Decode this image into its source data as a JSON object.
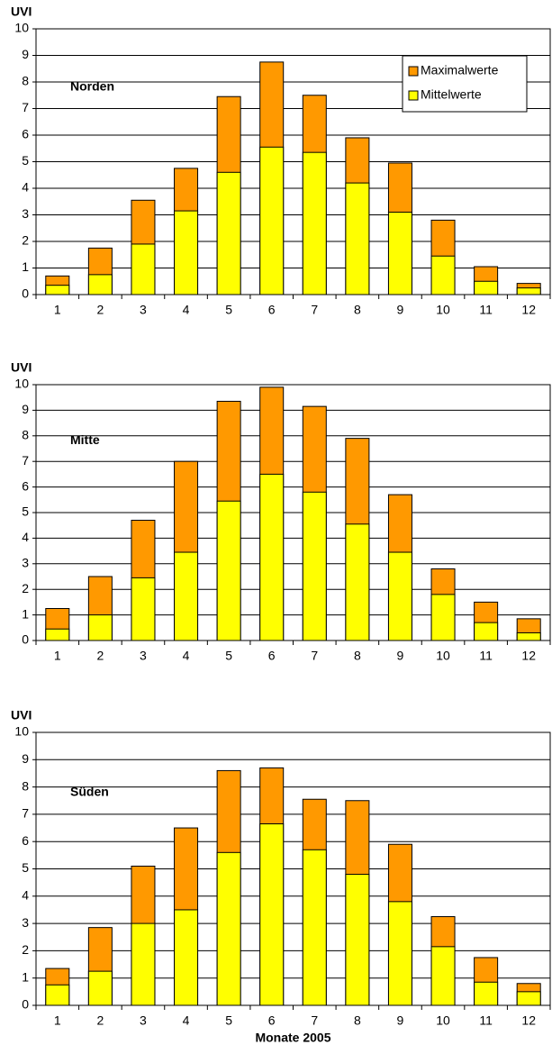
{
  "chart_data": [
    {
      "type": "bar",
      "annotation": "Norden",
      "ylabel": "UVI",
      "legend": true,
      "categories": [
        "1",
        "2",
        "3",
        "4",
        "5",
        "6",
        "7",
        "8",
        "9",
        "10",
        "11",
        "12"
      ],
      "series": [
        {
          "name": "Maximalwerte",
          "color": "#ff9900",
          "values": [
            0.7,
            1.75,
            3.55,
            4.75,
            7.45,
            8.75,
            7.5,
            5.9,
            4.95,
            2.8,
            1.05,
            0.42
          ]
        },
        {
          "name": "Mittelwerte",
          "color": "#ffff00",
          "values": [
            0.35,
            0.75,
            1.9,
            3.15,
            4.6,
            5.55,
            5.35,
            4.2,
            3.1,
            1.45,
            0.5,
            0.25
          ]
        }
      ],
      "ylim": [
        0,
        10
      ],
      "yticks": [
        0,
        1,
        2,
        3,
        4,
        5,
        6,
        7,
        8,
        9,
        10
      ],
      "grid": true
    },
    {
      "type": "bar",
      "annotation": "Mitte",
      "ylabel": "UVI",
      "legend": false,
      "categories": [
        "1",
        "2",
        "3",
        "4",
        "5",
        "6",
        "7",
        "8",
        "9",
        "10",
        "11",
        "12"
      ],
      "series": [
        {
          "name": "Maximalwerte",
          "color": "#ff9900",
          "values": [
            1.25,
            2.5,
            4.7,
            7.0,
            9.35,
            9.9,
            9.15,
            7.9,
            5.7,
            2.8,
            1.5,
            0.85
          ]
        },
        {
          "name": "Mittelwerte",
          "color": "#ffff00",
          "values": [
            0.45,
            1.0,
            2.45,
            3.45,
            5.45,
            6.5,
            5.8,
            4.55,
            3.45,
            1.8,
            0.7,
            0.3
          ]
        }
      ],
      "ylim": [
        0,
        10
      ],
      "yticks": [
        0,
        1,
        2,
        3,
        4,
        5,
        6,
        7,
        8,
        9,
        10
      ],
      "grid": true
    },
    {
      "type": "bar",
      "annotation": "Süden",
      "ylabel": "UVI",
      "xlabel": "Monate 2005",
      "legend": false,
      "categories": [
        "1",
        "2",
        "3",
        "4",
        "5",
        "6",
        "7",
        "8",
        "9",
        "10",
        "11",
        "12"
      ],
      "series": [
        {
          "name": "Maximalwerte",
          "color": "#ff9900",
          "values": [
            1.35,
            2.85,
            5.1,
            6.5,
            8.6,
            8.7,
            7.55,
            7.5,
            5.9,
            3.25,
            1.75,
            0.8
          ]
        },
        {
          "name": "Mittelwerte",
          "color": "#ffff00",
          "values": [
            0.75,
            1.25,
            3.0,
            3.5,
            5.6,
            6.65,
            5.7,
            4.8,
            3.8,
            2.15,
            0.85,
            0.5
          ]
        }
      ],
      "ylim": [
        0,
        10
      ],
      "yticks": [
        0,
        1,
        2,
        3,
        4,
        5,
        6,
        7,
        8,
        9,
        10
      ],
      "grid": true
    }
  ]
}
